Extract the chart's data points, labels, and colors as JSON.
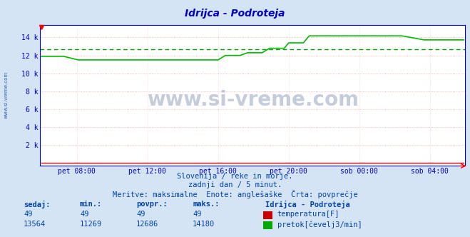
{
  "title": "Idrijca - Podroteja",
  "bg_color": "#d4e4f4",
  "plot_bg_color": "#ffffff",
  "grid_color_h": "#ffaaaa",
  "grid_color_v": "#ffcccc",
  "avg_line_color": "#009900",
  "flow_line_color": "#00bb00",
  "temp_line_color": "#cc0000",
  "axis_color": "#0000cc",
  "title_color": "#0000cc",
  "text_color": "#0044aa",
  "watermark_color": "#1a3a7a",
  "yticks": [
    0,
    2000,
    4000,
    6000,
    8000,
    10000,
    12000,
    14000
  ],
  "ytick_labels": [
    "",
    "2 k",
    "4 k",
    "6 k",
    "8 k",
    "10 k",
    "12 k",
    "14 k"
  ],
  "ymax": 15400,
  "ymin": -300,
  "xtick_labels": [
    "pet 08:00",
    "pet 12:00",
    "pet 16:00",
    "pet 20:00",
    "sob 00:00",
    "sob 04:00"
  ],
  "n_points": 288,
  "flow_avg": 12686,
  "flow_min": 11269,
  "flow_max": 14180,
  "flow_current": 13564,
  "temp_value": 49,
  "subtitle1": "Slovenija / reke in morje.",
  "subtitle2": "zadnji dan / 5 minut.",
  "subtitle3": "Meritve: maksimalne  Enote: anglešaške  Črta: povprečje",
  "legend_title": "Idrijca - Podroteja",
  "legend_temp": "temperatura[F]",
  "legend_flow": "pretok[čevelj3/min]",
  "col_sedaj": "sedaj:",
  "col_min": "min.:",
  "col_povpr": "povpr.:",
  "col_maks": "maks.:",
  "watermark": "www.si-vreme.com"
}
